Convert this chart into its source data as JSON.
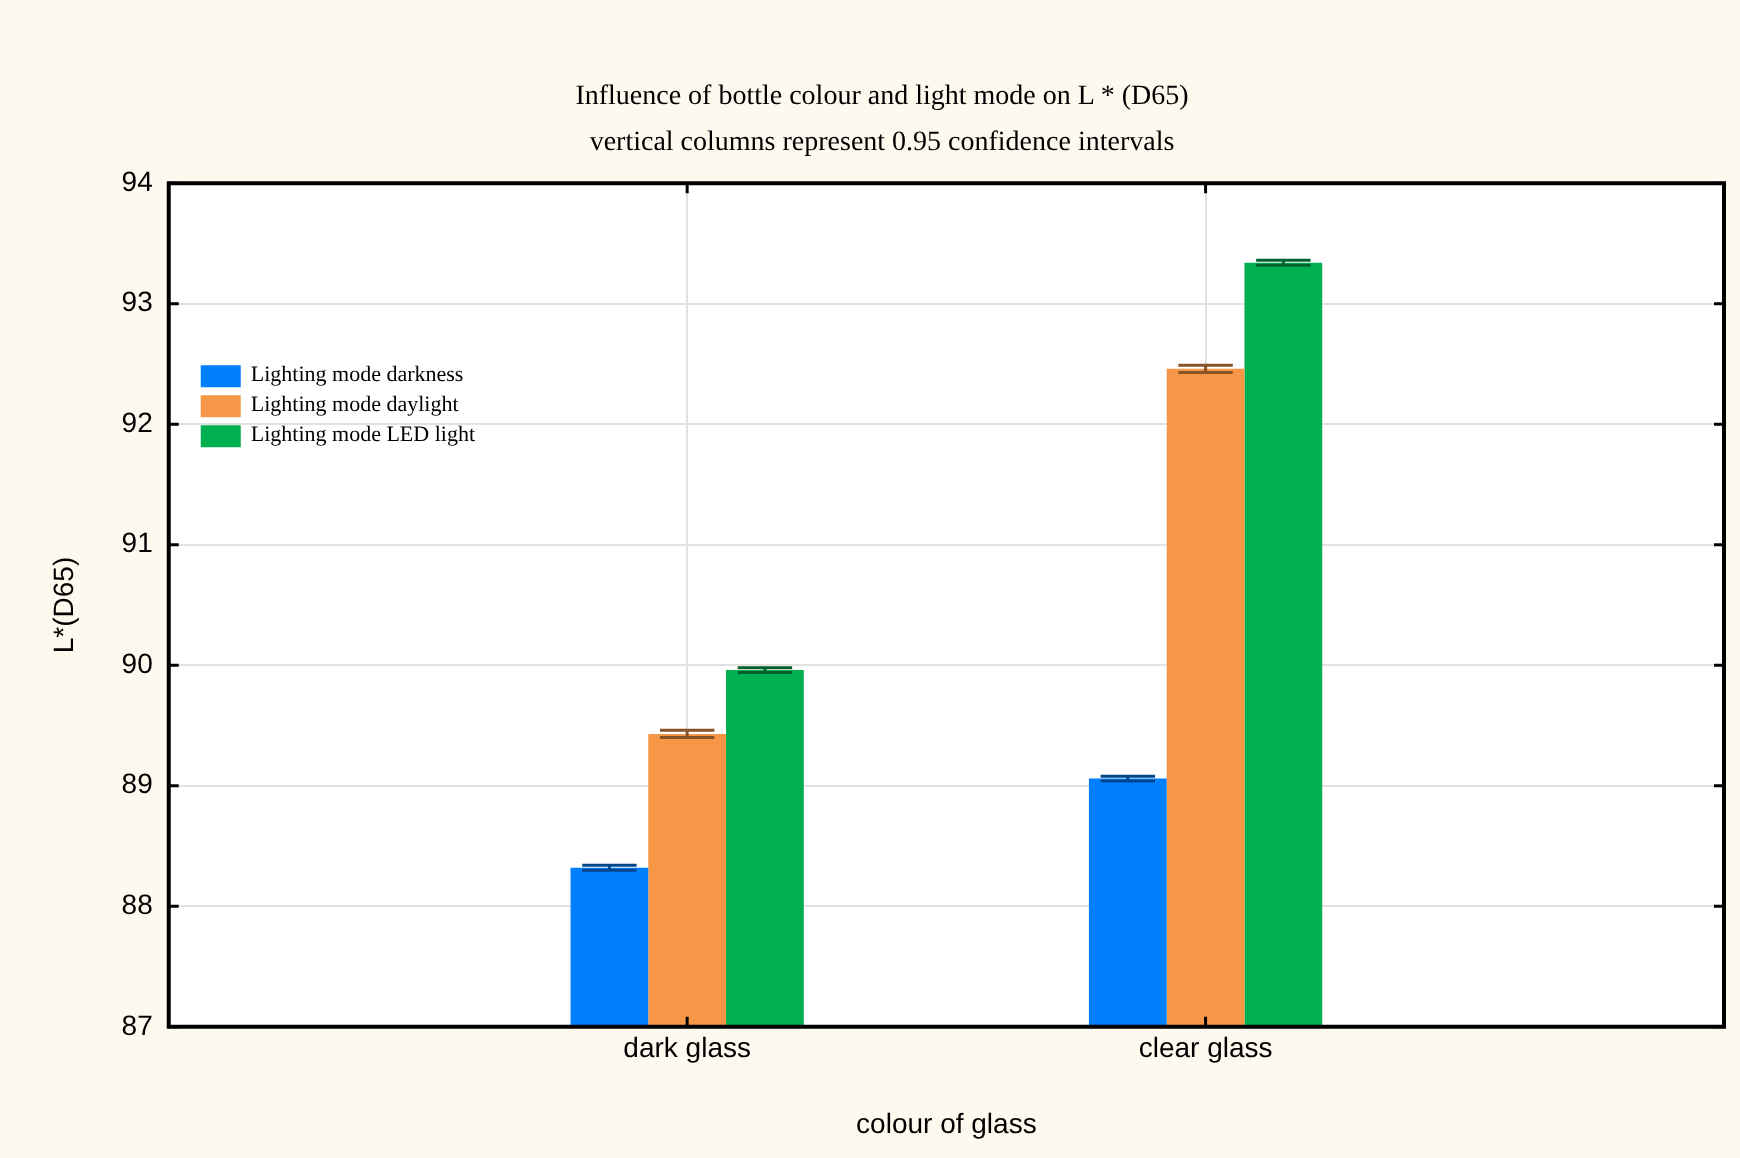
{
  "chart_data": {
    "type": "bar",
    "title": "Influence of bottle colour and light mode on L * (D65)",
    "subtitle": "vertical columns represent 0.95 confidence intervals",
    "xlabel": "colour of glass",
    "ylabel": "L*(D65)",
    "categories": [
      "dark glass",
      "clear glass"
    ],
    "series": [
      {
        "name": "Lighting mode darkness",
        "color": "#0080ff",
        "values": [
          88.32,
          89.06
        ],
        "errors": [
          0.02,
          0.02
        ]
      },
      {
        "name": "Lighting mode daylight",
        "color": "#f79646",
        "values": [
          89.43,
          92.46
        ],
        "errors": [
          0.03,
          0.03
        ]
      },
      {
        "name": "Lighting mode LED light",
        "color": "#00b050",
        "values": [
          89.96,
          93.34
        ],
        "errors": [
          0.02,
          0.02
        ]
      }
    ],
    "ylim": [
      87,
      94
    ],
    "yticks": [
      87,
      88,
      89,
      90,
      91,
      92,
      93,
      94
    ],
    "grid": true,
    "legend": "top left"
  }
}
